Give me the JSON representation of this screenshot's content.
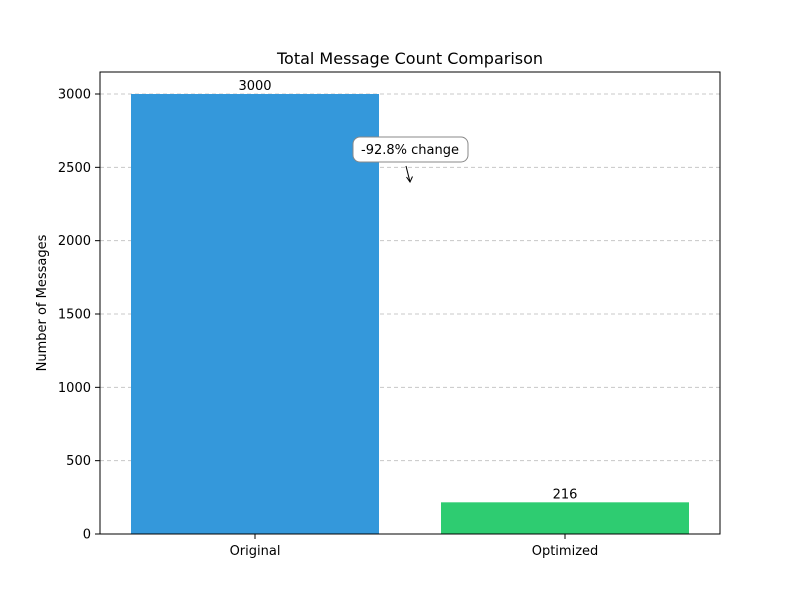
{
  "chart_data": {
    "type": "bar",
    "title": "Total Message Count Comparison",
    "xlabel": "",
    "ylabel": "Number of Messages",
    "categories": [
      "Original",
      "Optimized"
    ],
    "values": [
      3000,
      216
    ],
    "data_labels": [
      "3000",
      "216"
    ],
    "bar_colors": [
      "#3498db",
      "#2ecc71"
    ],
    "ylim": [
      0,
      3150
    ],
    "yticks": [
      0,
      500,
      1000,
      1500,
      2000,
      2500,
      3000
    ],
    "ytick_labels": [
      "0",
      "500",
      "1000",
      "1500",
      "2000",
      "2500",
      "3000"
    ],
    "grid": "y-dashed",
    "annotation": {
      "text": "-92.8% change",
      "arrow_target": [
        0.5,
        2400
      ]
    }
  }
}
